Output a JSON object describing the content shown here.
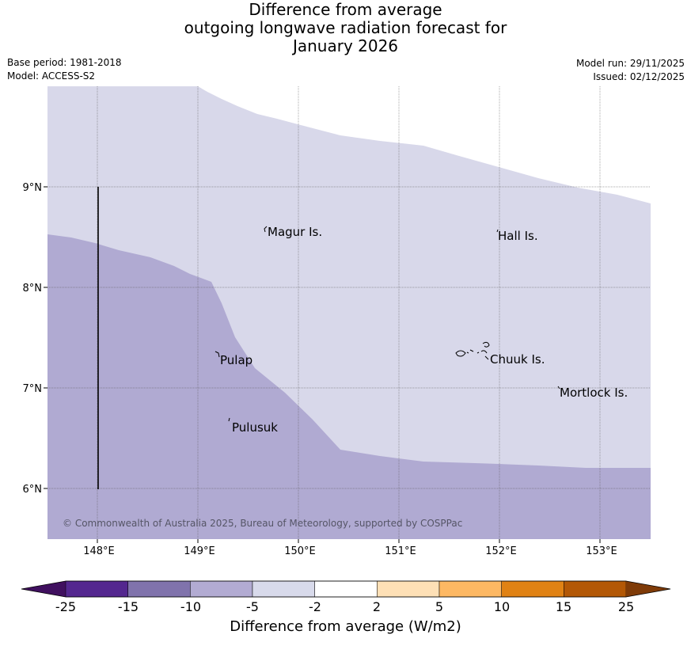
{
  "title": {
    "line1": "Difference from average",
    "line2": "outgoing longwave radiation forecast for",
    "line3": "January 2026"
  },
  "meta": {
    "base_period": "Base period: 1981-2018",
    "model": "Model: ACCESS-S2",
    "model_run": "Model run: 29/11/2025",
    "issued": "Issued: 02/12/2025"
  },
  "map": {
    "lat_ticks": [
      "9°N",
      "8°N",
      "7°N",
      "6°N"
    ],
    "lon_ticks": [
      "148°E",
      "149°E",
      "150°E",
      "151°E",
      "152°E",
      "153°E"
    ],
    "places": [
      {
        "name": "Magur Is."
      },
      {
        "name": "Hall Is."
      },
      {
        "name": "Pulap"
      },
      {
        "name": "Chuuk Is."
      },
      {
        "name": "Mortlock Is."
      },
      {
        "name": "Pulusuk"
      }
    ],
    "copyright": "© Commonwealth of Australia 2025, Bureau of Meteorology, supported by COSPPac",
    "colors": {
      "class_minus5_minus2": "#d8d8ea",
      "class_minus10_minus5": "#b0aad2"
    }
  },
  "colorbar": {
    "title": "Difference from average (W/m2)",
    "ticks": [
      "-25",
      "-15",
      "-10",
      "-5",
      "-2",
      "2",
      "5",
      "10",
      "15",
      "25"
    ],
    "colors": [
      "#40105f",
      "#54278f",
      "#8073ac",
      "#b2abd2",
      "#d8daeb",
      "#ffffff",
      "#fee0b6",
      "#fdb863",
      "#e08214",
      "#b35806",
      "#7f3b08"
    ]
  }
}
